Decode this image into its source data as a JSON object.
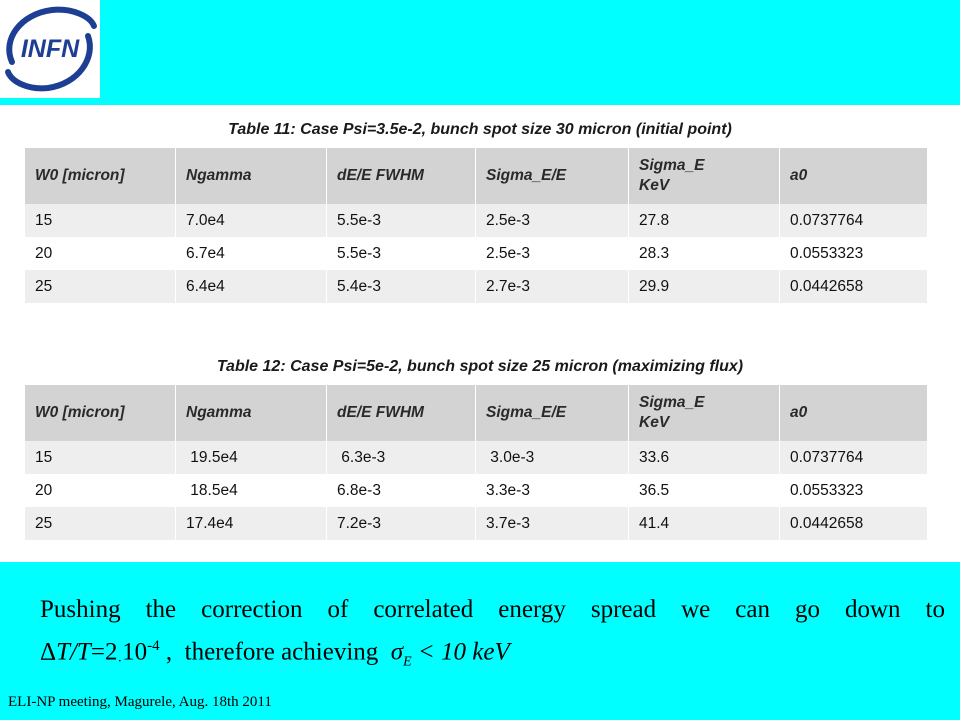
{
  "logo": {
    "text": "INFN",
    "icon": "infn-logo"
  },
  "table11": {
    "title": "Table 11: Case Psi=3.5e-2,  bunch spot size 30 micron (initial point)",
    "headers": [
      "W0 [micron]",
      "Ngamma",
      "dE/E FWHM",
      "Sigma_E/E",
      "Sigma_E\nKeV",
      "a0"
    ],
    "rows": [
      [
        "15",
        "7.0e4",
        "5.5e-3",
        "2.5e-3",
        "27.8",
        "0.0737764"
      ],
      [
        "20",
        "6.7e4",
        "5.5e-3",
        "2.5e-3",
        "28.3",
        "0.0553323"
      ],
      [
        "25",
        "6.4e4",
        "5.4e-3",
        "2.7e-3",
        "29.9",
        "0.0442658"
      ]
    ]
  },
  "table12": {
    "title": "Table 12: Case Psi=5e-2,  bunch spot size 25 micron (maximizing flux)",
    "headers": [
      "W0 [micron]",
      "Ngamma",
      "dE/E FWHM",
      "Sigma_E/E",
      "Sigma_E\nKeV",
      "a0"
    ],
    "rows": [
      [
        "15",
        " 19.5e4",
        " 6.3e-3",
        " 3.0e-3",
        "33.6",
        "0.0737764"
      ],
      [
        "20",
        " 18.5e4",
        "6.8e-3",
        "3.3e-3",
        "36.5",
        "0.0553323"
      ],
      [
        "25",
        "17.4e4",
        "7.2e-3",
        "3.7e-3",
        "41.4",
        "0.0442658"
      ]
    ]
  },
  "body_text": {
    "line1": "Pushing the correction of correlated energy spread we can go down to",
    "delta": "Δ",
    "tt": "T/T",
    "eq": "=2",
    "dot": "·",
    "ten": "10",
    "exp": "-4",
    "middle": " ,  therefore achieving  ",
    "sigma": "σ",
    "sub_e": "E",
    "tail": " < 10 keV"
  },
  "footer": "ELI-NP meeting, Magurele, Aug. 18th 2011",
  "colors": {
    "background": "#00ffff",
    "header_row": "#d3d3d3",
    "stripe": "#eeeeee",
    "logo_blue": "#1c3f94"
  }
}
